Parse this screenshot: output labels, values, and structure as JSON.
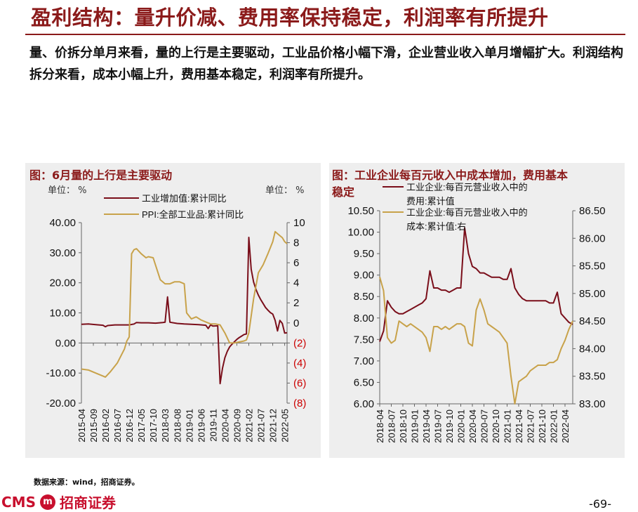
{
  "page": {
    "title": "盈利结构：量升价减、费用率保持稳定，利润率有所提升",
    "bullet": "量、价拆分单月来看，量的上行是主要驱动，工业品价格小幅下滑，企业营业收入单月增幅扩大。利润结构拆分来看，成本小幅上升，费用基本稳定，利润率有所提升。",
    "source": "数据来源：wind，招商证券。",
    "logo_en": "CMS",
    "logo_mark": "m",
    "logo_cn": "招商证券",
    "page_number": "-69-"
  },
  "left_panel": {
    "title": "图：6月量的上行是主要驱动",
    "unit_left": "单位： %",
    "unit_right": "单位： %"
  },
  "right_panel": {
    "title_line1": "图：工业企业每百元收入中成本增加，费用基本",
    "title_line2": "稳定"
  },
  "colors": {
    "dark_red": "#7a0e1a",
    "gold": "#c8a24a",
    "title_red": "#8b1a1a",
    "neg_red": "#cc0000"
  },
  "chart_data": [
    {
      "type": "line",
      "title": "图：6月量的上行是主要驱动",
      "x_tick_labels": [
        "2015-04",
        "2015-09",
        "2016-02",
        "2016-07",
        "2016-12",
        "2017-05",
        "2017-10",
        "2018-03",
        "2018-08",
        "2019-01",
        "2019-06",
        "2019-11",
        "2020-04",
        "2020-09",
        "2021-02",
        "2021-07",
        "2021-12",
        "2022-05"
      ],
      "y_left": {
        "ticks": [
          "40.00",
          "30.00",
          "20.00",
          "10.00",
          "0.00",
          "-10.00",
          "-20.00"
        ],
        "ylim": [
          -20,
          40
        ]
      },
      "y_right": {
        "ticks": [
          "10",
          "8",
          "6",
          "4",
          "2",
          "0",
          "(2)",
          "(4)",
          "(6)",
          "(8)"
        ],
        "ylim": [
          -8,
          10
        ]
      },
      "series": [
        {
          "name": "工业增加值:累计同比",
          "axis": "left",
          "points": [
            [
              "2015-04",
              6.2
            ],
            [
              "2015-07",
              6.3
            ],
            [
              "2015-10",
              6.1
            ],
            [
              "2016-01",
              5.9
            ],
            [
              "2016-02",
              5.4
            ],
            [
              "2016-03",
              5.8
            ],
            [
              "2016-06",
              6.0
            ],
            [
              "2016-09",
              6.0
            ],
            [
              "2016-12",
              6.0
            ],
            [
              "2017-02",
              6.3
            ],
            [
              "2017-03",
              6.8
            ],
            [
              "2017-05",
              6.7
            ],
            [
              "2017-08",
              6.7
            ],
            [
              "2017-11",
              6.6
            ],
            [
              "2018-02",
              6.8
            ],
            [
              "2018-03",
              6.9
            ],
            [
              "2018-04",
              15.3
            ],
            [
              "2018-05",
              6.9
            ],
            [
              "2018-08",
              6.5
            ],
            [
              "2018-11",
              6.3
            ],
            [
              "2019-02",
              6.2
            ],
            [
              "2019-05",
              6.1
            ],
            [
              "2019-08",
              5.9
            ],
            [
              "2019-09",
              4.8
            ],
            [
              "2019-10",
              6.0
            ],
            [
              "2019-11",
              5.6
            ],
            [
              "2020-01",
              5.7
            ],
            [
              "2020-02",
              -13.5
            ],
            [
              "2020-03",
              -8.4
            ],
            [
              "2020-04",
              -4.9
            ],
            [
              "2020-05",
              -2.8
            ],
            [
              "2020-06",
              -1.3
            ],
            [
              "2020-07",
              -0.4
            ],
            [
              "2020-08",
              0.4
            ],
            [
              "2020-09",
              1.2
            ],
            [
              "2020-10",
              1.8
            ],
            [
              "2020-11",
              2.3
            ],
            [
              "2020-12",
              2.8
            ],
            [
              "2021-01",
              3.0
            ],
            [
              "2021-02",
              35.1
            ],
            [
              "2021-03",
              24.5
            ],
            [
              "2021-04",
              20.3
            ],
            [
              "2021-05",
              17.8
            ],
            [
              "2021-06",
              15.9
            ],
            [
              "2021-07",
              14.4
            ],
            [
              "2021-08",
              13.1
            ],
            [
              "2021-09",
              11.8
            ],
            [
              "2021-10",
              10.9
            ],
            [
              "2021-11",
              10.1
            ],
            [
              "2021-12",
              9.6
            ],
            [
              "2022-01",
              7.5
            ],
            [
              "2022-02",
              4.0
            ],
            [
              "2022-03",
              7.5
            ],
            [
              "2022-04",
              6.5
            ],
            [
              "2022-05",
              3.3
            ],
            [
              "2022-06",
              3.4
            ]
          ]
        },
        {
          "name": "PPI:全部工业品:累计同比",
          "axis": "right",
          "points": [
            [
              "2015-04",
              -4.6
            ],
            [
              "2015-07",
              -4.7
            ],
            [
              "2015-10",
              -5.0
            ],
            [
              "2016-01",
              -5.3
            ],
            [
              "2016-02",
              -5.4
            ],
            [
              "2016-04",
              -4.9
            ],
            [
              "2016-07",
              -4.0
            ],
            [
              "2016-10",
              -2.6
            ],
            [
              "2016-11",
              -1.8
            ],
            [
              "2016-12",
              -1.4
            ],
            [
              "2017-01",
              6.9
            ],
            [
              "2017-02",
              7.3
            ],
            [
              "2017-03",
              7.4
            ],
            [
              "2017-05",
              6.9
            ],
            [
              "2017-07",
              6.5
            ],
            [
              "2017-08",
              6.6
            ],
            [
              "2017-10",
              6.5
            ],
            [
              "2018-01",
              4.3
            ],
            [
              "2018-03",
              3.9
            ],
            [
              "2018-05",
              3.9
            ],
            [
              "2018-07",
              4.1
            ],
            [
              "2018-09",
              4.1
            ],
            [
              "2018-11",
              3.9
            ],
            [
              "2018-12",
              1.0
            ],
            [
              "2019-02",
              0.4
            ],
            [
              "2019-04",
              0.6
            ],
            [
              "2019-06",
              0.3
            ],
            [
              "2019-08",
              0.1
            ],
            [
              "2019-10",
              -0.1
            ],
            [
              "2019-12",
              -0.1
            ],
            [
              "2020-02",
              -0.2
            ],
            [
              "2020-04",
              -1.0
            ],
            [
              "2020-06",
              -2.0
            ],
            [
              "2020-08",
              -2.0
            ],
            [
              "2020-10",
              -1.9
            ],
            [
              "2020-12",
              -1.8
            ],
            [
              "2021-01",
              -1.7
            ],
            [
              "2021-02",
              -1.0
            ],
            [
              "2021-04",
              2.4
            ],
            [
              "2021-06",
              5.0
            ],
            [
              "2021-08",
              5.8
            ],
            [
              "2021-10",
              6.9
            ],
            [
              "2021-12",
              8.1
            ],
            [
              "2022-01",
              9.1
            ],
            [
              "2022-02",
              8.9
            ],
            [
              "2022-03",
              8.7
            ],
            [
              "2022-04",
              8.5
            ],
            [
              "2022-05",
              8.1
            ],
            [
              "2022-06",
              7.9
            ]
          ]
        }
      ]
    },
    {
      "type": "line",
      "title": "图：工业企业每百元收入中成本增加，费用基本稳定",
      "x_tick_labels": [
        "2018-04",
        "2018-07",
        "2018-10",
        "2019-01",
        "2019-04",
        "2019-07",
        "2019-10",
        "2020-01",
        "2020-04",
        "2020-07",
        "2020-10",
        "2021-01",
        "2021-04",
        "2021-07",
        "2021-10",
        "2022-01",
        "2022-04"
      ],
      "y_left": {
        "ticks": [
          "10.50",
          "10.00",
          "9.50",
          "9.00",
          "8.50",
          "8.00",
          "7.50",
          "7.00",
          "6.50",
          "6.00"
        ],
        "ylim": [
          6.0,
          10.5
        ]
      },
      "y_right": {
        "ticks": [
          "86.50",
          "86.00",
          "85.50",
          "85.00",
          "84.50",
          "84.00",
          "83.50",
          "83.00"
        ],
        "ylim": [
          83.0,
          86.5
        ]
      },
      "series": [
        {
          "name": "工业企业:每百元营业收入中的费用:累计值",
          "axis": "left",
          "points": [
            [
              "2018-04",
              7.45
            ],
            [
              "2018-05",
              7.7
            ],
            [
              "2018-06",
              8.4
            ],
            [
              "2018-07",
              8.25
            ],
            [
              "2018-08",
              8.15
            ],
            [
              "2018-09",
              8.1
            ],
            [
              "2018-10",
              8.1
            ],
            [
              "2018-11",
              8.15
            ],
            [
              "2018-12",
              8.2
            ],
            [
              "2019-02",
              8.3
            ],
            [
              "2019-03",
              8.35
            ],
            [
              "2019-04",
              8.45
            ],
            [
              "2019-05",
              9.1
            ],
            [
              "2019-06",
              8.7
            ],
            [
              "2019-07",
              8.7
            ],
            [
              "2019-08",
              8.65
            ],
            [
              "2019-09",
              8.65
            ],
            [
              "2019-10",
              8.6
            ],
            [
              "2019-11",
              8.65
            ],
            [
              "2019-12",
              8.7
            ],
            [
              "2020-01",
              8.7
            ],
            [
              "2020-02",
              10.1
            ],
            [
              "2020-03",
              9.5
            ],
            [
              "2020-04",
              9.2
            ],
            [
              "2020-05",
              9.15
            ],
            [
              "2020-06",
              9.05
            ],
            [
              "2020-07",
              9.05
            ],
            [
              "2020-08",
              9.0
            ],
            [
              "2020-09",
              8.95
            ],
            [
              "2020-10",
              8.95
            ],
            [
              "2020-11",
              8.95
            ],
            [
              "2020-12",
              8.9
            ],
            [
              "2021-01",
              8.9
            ],
            [
              "2021-02",
              9.15
            ],
            [
              "2021-03",
              8.7
            ],
            [
              "2021-04",
              8.55
            ],
            [
              "2021-05",
              8.45
            ],
            [
              "2021-06",
              8.4
            ],
            [
              "2021-07",
              8.4
            ],
            [
              "2021-08",
              8.4
            ],
            [
              "2021-09",
              8.4
            ],
            [
              "2021-10",
              8.4
            ],
            [
              "2021-11",
              8.4
            ],
            [
              "2021-12",
              8.35
            ],
            [
              "2022-01",
              8.35
            ],
            [
              "2022-02",
              8.6
            ],
            [
              "2022-03",
              8.1
            ],
            [
              "2022-04",
              8.0
            ],
            [
              "2022-05",
              7.9
            ],
            [
              "2022-06",
              7.85
            ]
          ]
        },
        {
          "name": "工业企业:每百元营业收入中的成本:累计值:右",
          "axis": "right",
          "points": [
            [
              "2018-04",
              85.3
            ],
            [
              "2018-05",
              85.05
            ],
            [
              "2018-06",
              84.2
            ],
            [
              "2018-07",
              84.1
            ],
            [
              "2018-08",
              84.15
            ],
            [
              "2018-09",
              84.5
            ],
            [
              "2018-10",
              84.45
            ],
            [
              "2018-11",
              84.4
            ],
            [
              "2018-12",
              84.45
            ],
            [
              "2019-02",
              84.35
            ],
            [
              "2019-03",
              84.3
            ],
            [
              "2019-04",
              84.2
            ],
            [
              "2019-05",
              83.95
            ],
            [
              "2019-06",
              84.4
            ],
            [
              "2019-07",
              84.4
            ],
            [
              "2019-08",
              84.35
            ],
            [
              "2019-09",
              84.4
            ],
            [
              "2019-10",
              84.35
            ],
            [
              "2019-11",
              84.4
            ],
            [
              "2019-12",
              84.45
            ],
            [
              "2020-01",
              84.45
            ],
            [
              "2020-02",
              84.4
            ],
            [
              "2020-03",
              84.1
            ],
            [
              "2020-04",
              84.05
            ],
            [
              "2020-05",
              84.7
            ],
            [
              "2020-06",
              84.9
            ],
            [
              "2020-07",
              84.7
            ],
            [
              "2020-08",
              84.45
            ],
            [
              "2020-09",
              84.4
            ],
            [
              "2020-10",
              84.35
            ],
            [
              "2020-11",
              84.3
            ],
            [
              "2020-12",
              84.2
            ],
            [
              "2021-01",
              84.1
            ],
            [
              "2021-02",
              83.5
            ],
            [
              "2021-03",
              83.0
            ],
            [
              "2021-04",
              83.4
            ],
            [
              "2021-05",
              83.45
            ],
            [
              "2021-06",
              83.5
            ],
            [
              "2021-07",
              83.6
            ],
            [
              "2021-08",
              83.65
            ],
            [
              "2021-09",
              83.7
            ],
            [
              "2021-10",
              83.7
            ],
            [
              "2021-11",
              83.7
            ],
            [
              "2021-12",
              83.75
            ],
            [
              "2022-01",
              83.75
            ],
            [
              "2022-02",
              83.8
            ],
            [
              "2022-03",
              84.0
            ],
            [
              "2022-04",
              84.15
            ],
            [
              "2022-05",
              84.35
            ],
            [
              "2022-06",
              84.5
            ]
          ]
        }
      ]
    }
  ]
}
